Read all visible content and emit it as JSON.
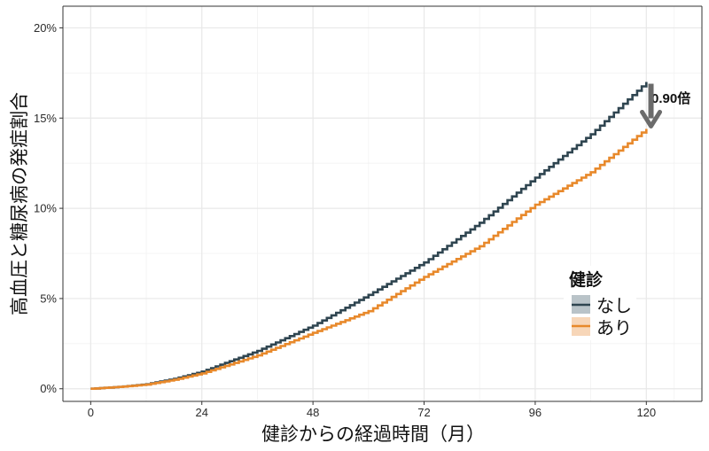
{
  "chart_data": {
    "type": "line",
    "title": "",
    "xlabel": "健診からの経過時間（月）",
    "ylabel": "高血圧と糖尿病の発症割合",
    "xlim": [
      -6,
      132
    ],
    "ylim": [
      -0.7,
      21.2
    ],
    "x_ticks": [
      0,
      24,
      48,
      72,
      96,
      120
    ],
    "x_tick_labels": [
      "0",
      "24",
      "48",
      "72",
      "96",
      "120"
    ],
    "y_ticks": [
      0,
      5,
      10,
      15,
      20
    ],
    "y_tick_labels": [
      "0%",
      "5%",
      "10%",
      "15%",
      "20%"
    ],
    "grid": true,
    "legend": {
      "title": "健診",
      "position": "right-inside-bottom",
      "entries": [
        "なし",
        "あり"
      ]
    },
    "x": [
      0,
      6,
      12,
      18,
      24,
      36,
      48,
      60,
      72,
      84,
      96,
      108,
      120
    ],
    "series": [
      {
        "name": "なし",
        "color": "#2f4550",
        "values": [
          0,
          0.1,
          0.25,
          0.55,
          0.95,
          2.1,
          3.5,
          5.2,
          7.0,
          9.2,
          11.7,
          14.1,
          17.0
        ]
      },
      {
        "name": "あり",
        "color": "#e8892b",
        "values": [
          0,
          0.1,
          0.23,
          0.5,
          0.85,
          1.85,
          3.1,
          4.3,
          6.2,
          7.9,
          10.2,
          12.0,
          14.4
        ]
      }
    ],
    "annotations": [
      {
        "text": "0.90倍",
        "x": 121,
        "y": 15.6,
        "arrow": "down",
        "arrow_from": 17.0,
        "arrow_to": 14.4
      }
    ]
  },
  "labels": {
    "ylabel": "高血圧と糖尿病の発症割合",
    "xlabel": "健診からの経過時間（月）",
    "legend_title": "健診",
    "legend_item_0": "なし",
    "legend_item_1": "あり",
    "annotation": "0.90倍"
  }
}
